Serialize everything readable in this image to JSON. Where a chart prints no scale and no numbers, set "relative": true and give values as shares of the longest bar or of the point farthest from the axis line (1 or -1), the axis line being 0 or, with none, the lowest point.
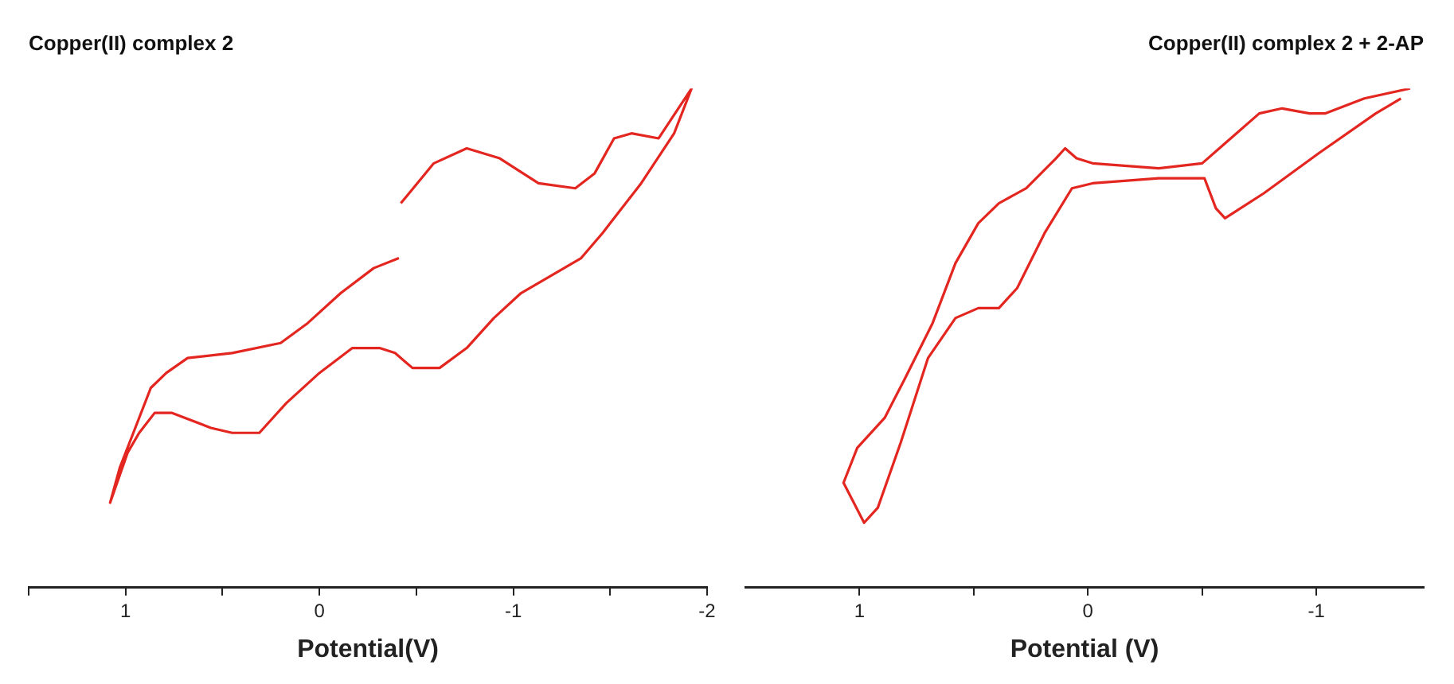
{
  "chart_data": [
    {
      "type": "line",
      "title": "Copper(II) complex 2",
      "xlabel": "Potential(V)",
      "relative": true,
      "marker": "none",
      "xlim": [
        1.5,
        -2
      ],
      "xticks": [
        {
          "value": 1.5,
          "label": null
        },
        1,
        {
          "value": 0.5,
          "label": null
        },
        0,
        {
          "value": -0.5,
          "label": null
        },
        -1,
        {
          "value": -1.5,
          "label": null
        },
        -2
      ],
      "series": [
        {
          "color": "#e3261f",
          "x": [
            -0.42,
            -0.59,
            -0.76,
            -0.93,
            -1.13,
            -1.32,
            -1.42,
            -1.52,
            -1.61,
            -1.75,
            -1.92,
            -1.83,
            -1.66,
            -1.46,
            -1.35,
            -1.04,
            -0.9,
            -0.76,
            -0.62,
            -0.48,
            -0.39,
            -0.31,
            -0.17,
            0,
            0.17,
            0.31,
            0.45,
            0.56,
            0.76,
            0.85,
            0.93,
            0.99,
            1.08,
            1.03,
            0.96,
            0.87,
            0.79,
            0.68,
            0.45,
            0.2,
            0.06,
            -0.11,
            -0.28,
            -0.41
          ],
          "values": [
            0.77,
            0.85,
            0.88,
            0.86,
            0.81,
            0.8,
            0.83,
            0.9,
            0.91,
            0.9,
            1,
            0.91,
            0.81,
            0.71,
            0.66,
            0.59,
            0.54,
            0.48,
            0.44,
            0.44,
            0.47,
            0.48,
            0.48,
            0.43,
            0.37,
            0.31,
            0.31,
            0.32,
            0.35,
            0.35,
            0.31,
            0.27,
            0.17,
            0.24,
            0.31,
            0.4,
            0.43,
            0.46,
            0.47,
            0.49,
            0.53,
            0.59,
            0.64,
            0.66
          ]
        }
      ]
    },
    {
      "type": "line",
      "title": "Copper(II) complex 2 + 2-AP",
      "xlabel": "Potential (V)",
      "relative": true,
      "marker": "none",
      "xlim": [
        1.5,
        -1.47
      ],
      "xticks": [
        1,
        {
          "value": 0.5,
          "label": null
        },
        0,
        {
          "value": -0.5,
          "label": null
        },
        -1
      ],
      "series": [
        {
          "color": "#e3261f",
          "x": [
            -1.41,
            -1.21,
            -1.04,
            -0.97,
            -0.85,
            -0.75,
            -0.6,
            -0.5,
            -0.31,
            -0.02,
            0.05,
            0.1,
            0.14,
            0.27,
            0.39,
            0.48,
            0.58,
            0.68,
            0.8,
            0.89,
            1.01,
            1.07,
            0.98,
            0.92,
            0.82,
            0.7,
            0.58,
            0.48,
            0.39,
            0.31,
            0.19,
            0.07,
            -0.02,
            -0.31,
            -0.51,
            -0.56,
            -0.6,
            -0.77,
            -1.01,
            -1.26,
            -1.37
          ],
          "values": [
            1,
            0.98,
            0.95,
            0.95,
            0.96,
            0.95,
            0.89,
            0.85,
            0.84,
            0.85,
            0.86,
            0.88,
            0.86,
            0.8,
            0.77,
            0.73,
            0.65,
            0.53,
            0.42,
            0.34,
            0.28,
            0.21,
            0.13,
            0.16,
            0.29,
            0.46,
            0.54,
            0.56,
            0.56,
            0.6,
            0.71,
            0.8,
            0.81,
            0.82,
            0.82,
            0.76,
            0.74,
            0.79,
            0.87,
            0.95,
            0.98
          ]
        }
      ]
    }
  ]
}
